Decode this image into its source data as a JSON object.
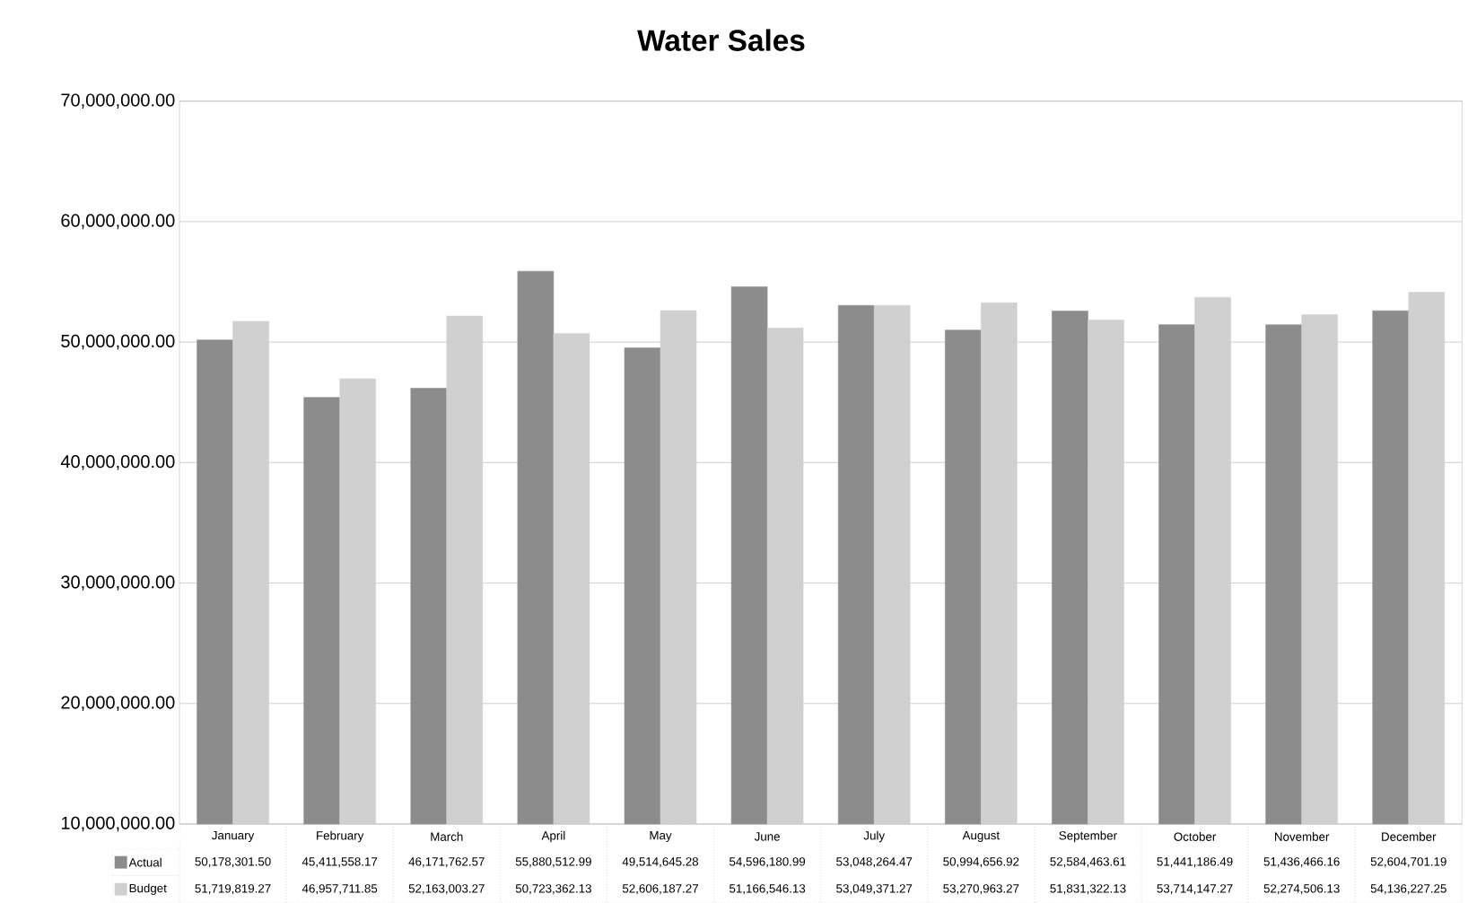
{
  "chart_data": {
    "type": "bar",
    "title": "Water Sales",
    "categories": [
      "January",
      "February",
      "March",
      "April",
      "May",
      "June",
      "July",
      "August",
      "September",
      "October",
      "November",
      "December"
    ],
    "series": [
      {
        "name": "Actual",
        "color": "#8c8c8c",
        "values": [
          50178301.5,
          45411558.17,
          46171762.57,
          55880512.99,
          49514645.28,
          54596180.99,
          53048264.47,
          50994656.92,
          52584463.61,
          51441186.49,
          51436466.16,
          52604701.19
        ],
        "value_labels": [
          "50,178,301.50",
          "45,411,558.17",
          "46,171,762.57",
          "55,880,512.99",
          "49,514,645.28",
          "54,596,180.99",
          "53,048,264.47",
          "50,994,656.92",
          "52,584,463.61",
          "51,441,186.49",
          "51,436,466.16",
          "52,604,701.19"
        ]
      },
      {
        "name": "Budget",
        "color": "#d0d0d0",
        "values": [
          51719819.27,
          46957711.85,
          52163003.27,
          50723362.13,
          52606187.27,
          51166546.13,
          53049371.27,
          53270963.27,
          51831322.13,
          53714147.27,
          52274506.13,
          54136227.25
        ],
        "value_labels": [
          "51,719,819.27",
          "46,957,711.85",
          "52,163,003.27",
          "50,723,362.13",
          "52,606,187.27",
          "51,166,546.13",
          "53,049,371.27",
          "53,270,963.27",
          "51,831,322.13",
          "53,714,147.27",
          "52,274,506.13",
          "54,136,227.25"
        ]
      }
    ],
    "ylim": [
      10000000,
      70000000
    ],
    "yticks": [
      {
        "value": 10000000,
        "label": "10,000,000.00"
      },
      {
        "value": 20000000,
        "label": "20,000,000.00"
      },
      {
        "value": 30000000,
        "label": "30,000,000.00"
      },
      {
        "value": 40000000,
        "label": "40,000,000.00"
      },
      {
        "value": 50000000,
        "label": "50,000,000.00"
      },
      {
        "value": 60000000,
        "label": "60,000,000.00"
      },
      {
        "value": 70000000,
        "label": "70,000,000.00"
      }
    ],
    "grid": "y",
    "legend": "bottom"
  }
}
